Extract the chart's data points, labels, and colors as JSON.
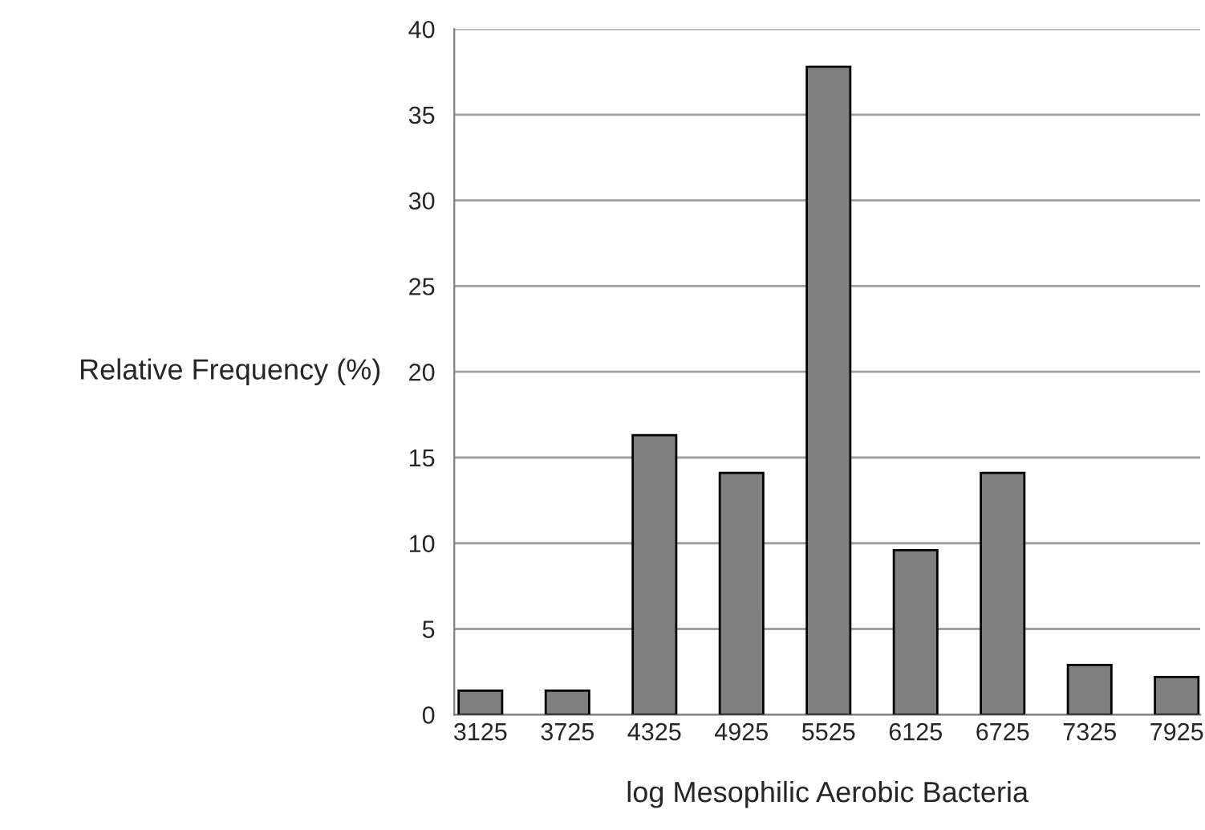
{
  "chart_data": {
    "type": "bar",
    "xlabel": "log Mesophilic Aerobic Bacteria",
    "ylabel": "Relative Frequency (%)",
    "categories": [
      "3125",
      "3725",
      "4325",
      "4925",
      "5525",
      "6125",
      "6725",
      "7325",
      "7925"
    ],
    "values": [
      1.4,
      1.4,
      16.3,
      14.1,
      37.8,
      9.6,
      14.1,
      2.9,
      2.2
    ],
    "color": "#808080",
    "ylim": [
      0,
      40
    ],
    "yticks": [
      0,
      5,
      10,
      15,
      20,
      25,
      30,
      35,
      40
    ],
    "grid": "y"
  }
}
